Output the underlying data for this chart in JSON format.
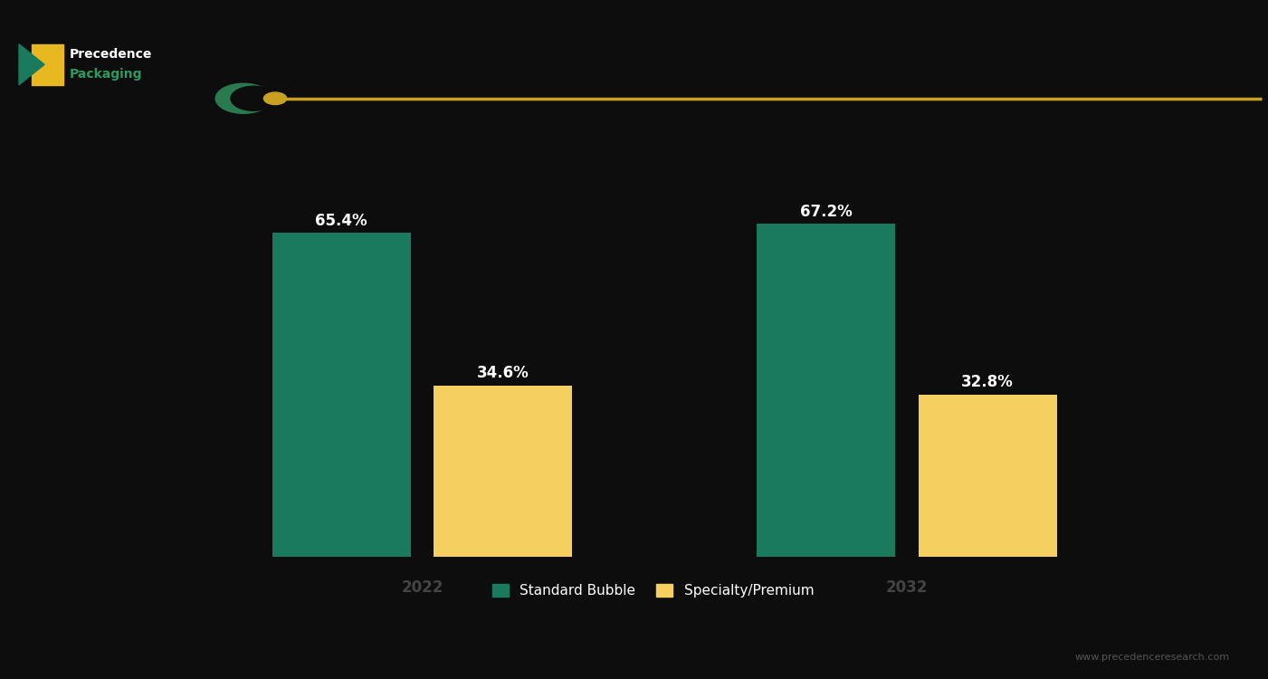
{
  "years": [
    "2022",
    "2032"
  ],
  "series": [
    {
      "name": "Standard Bubble",
      "color": "#1a7a5e",
      "values": [
        65.4,
        67.2
      ]
    },
    {
      "name": "Specialty/Premium",
      "color": "#f5d060",
      "values": [
        34.6,
        32.8
      ]
    }
  ],
  "bar_labels": [
    [
      "65.4%",
      ""
    ],
    [
      "67.2%",
      ""
    ]
  ],
  "ylim": [
    0,
    85
  ],
  "background_color": "#0d0d0d",
  "figure_bg": "#0d0d0d",
  "bar_width": 0.12,
  "group_centers": [
    0.3,
    0.72
  ],
  "xlim": [
    0.0,
    1.0
  ],
  "label_fontsize": 12,
  "tick_fontsize": 12,
  "legend_fontsize": 11,
  "accent_line_color": "#c9a020",
  "watermark": "www.precedenceresearch.com"
}
